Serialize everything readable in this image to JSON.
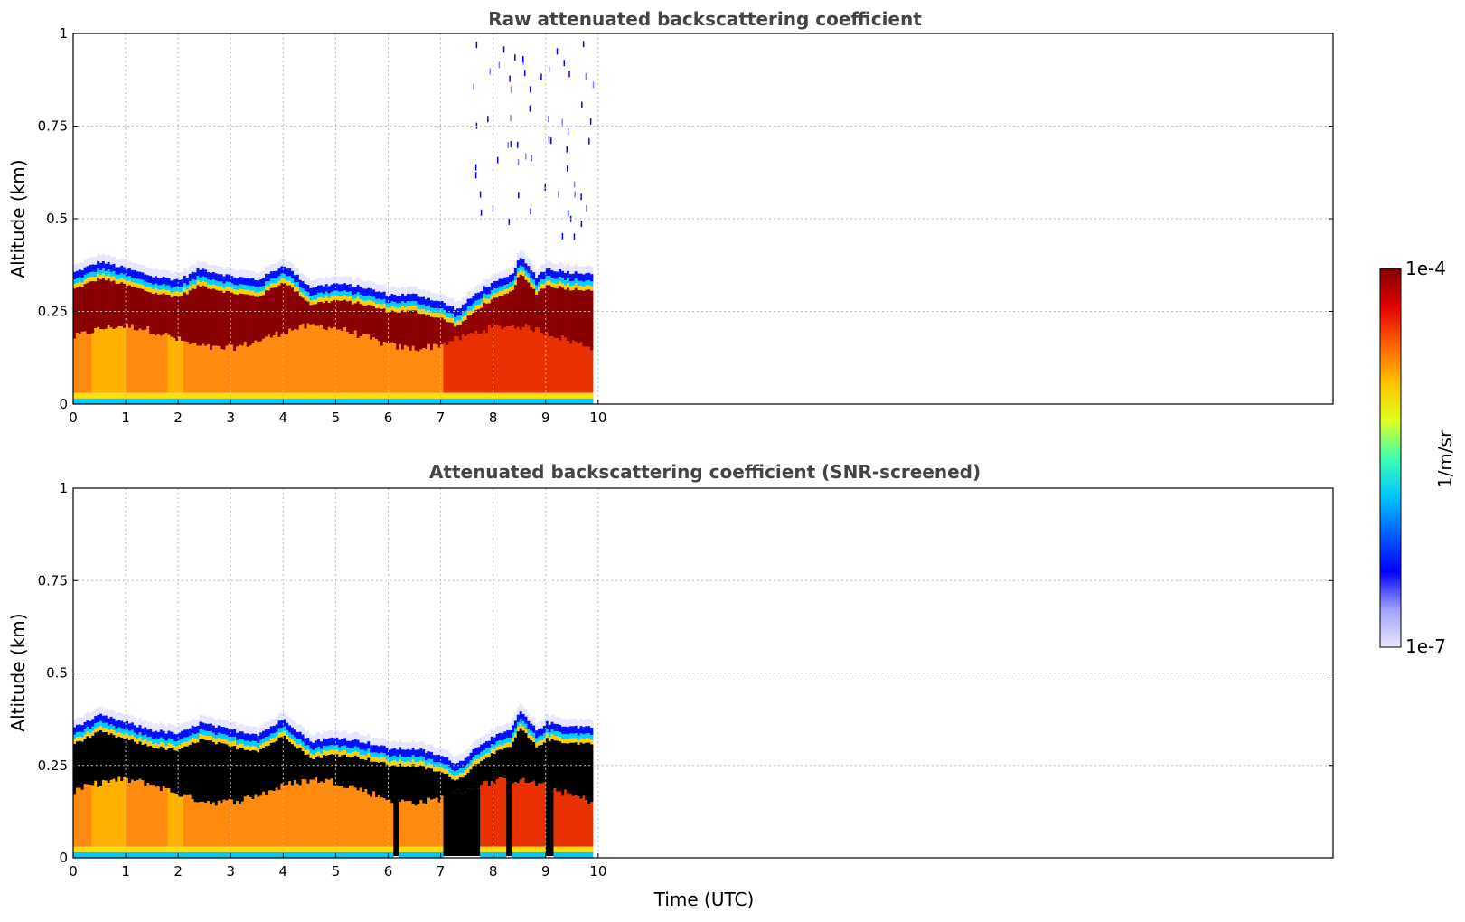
{
  "chart_data": [
    {
      "type": "heatmap",
      "title": "Raw attenuated backscattering coefficient",
      "xlabel": "",
      "ylabel": "Altitude (km)",
      "xlim": [
        0,
        24
      ],
      "ylim": [
        0,
        1
      ],
      "xticks": [
        "0",
        "1",
        "2",
        "3",
        "4",
        "5",
        "6",
        "7",
        "8",
        "9",
        "10"
      ],
      "yticks": [
        "0",
        "0.25",
        "0.5",
        "0.75",
        "1"
      ],
      "grid": true,
      "data_extent_hours": 9.9,
      "layer_top_km": [
        [
          0,
          0.35
        ],
        [
          0.5,
          0.38
        ],
        [
          1,
          0.36
        ],
        [
          1.5,
          0.34
        ],
        [
          2,
          0.33
        ],
        [
          2.4,
          0.36
        ],
        [
          3,
          0.34
        ],
        [
          3.5,
          0.33
        ],
        [
          4,
          0.37
        ],
        [
          4.5,
          0.31
        ],
        [
          5,
          0.32
        ],
        [
          5.5,
          0.31
        ],
        [
          6,
          0.29
        ],
        [
          6.5,
          0.29
        ],
        [
          7,
          0.27
        ],
        [
          7.3,
          0.25
        ],
        [
          7.8,
          0.31
        ],
        [
          8.3,
          0.34
        ],
        [
          8.5,
          0.39
        ],
        [
          8.8,
          0.34
        ],
        [
          9,
          0.36
        ],
        [
          9.5,
          0.35
        ],
        [
          9.9,
          0.35
        ]
      ],
      "dense_band_km": [
        0.18,
        0.31
      ],
      "surface_band_km": [
        0,
        0.03
      ],
      "sparse_upper_returns_hours": [
        7.6,
        9.9
      ]
    },
    {
      "type": "heatmap",
      "title": "Attenuated backscattering coefficient (SNR-screened)",
      "xlabel": "Time (UTC)",
      "ylabel": "Altitude (km)",
      "xlim": [
        0,
        24
      ],
      "ylim": [
        0,
        1
      ],
      "xticks": [
        "0",
        "1",
        "2",
        "3",
        "4",
        "5",
        "6",
        "7",
        "8",
        "9",
        "10"
      ],
      "yticks": [
        "0",
        "0.25",
        "0.5",
        "0.75",
        "1"
      ],
      "grid": true,
      "data_extent_hours": 9.9,
      "screened_color": "#000000",
      "screened_band_km": [
        0.2,
        0.31
      ],
      "screened_full_columns_hours": [
        [
          6.05,
          6.15
        ],
        [
          7.0,
          7.7
        ],
        [
          8.2,
          8.3
        ],
        [
          8.95,
          9.1
        ]
      ]
    }
  ],
  "colorbar": {
    "label": "1/m/sr",
    "max_label": "1e-4",
    "min_label": "1e-7",
    "colors": [
      "#e8e8ff",
      "#a0a0ff",
      "#0000ff",
      "#0060ff",
      "#00c8ff",
      "#40ffb0",
      "#e0ff20",
      "#ffc000",
      "#ff6000",
      "#e00000",
      "#800000"
    ]
  }
}
